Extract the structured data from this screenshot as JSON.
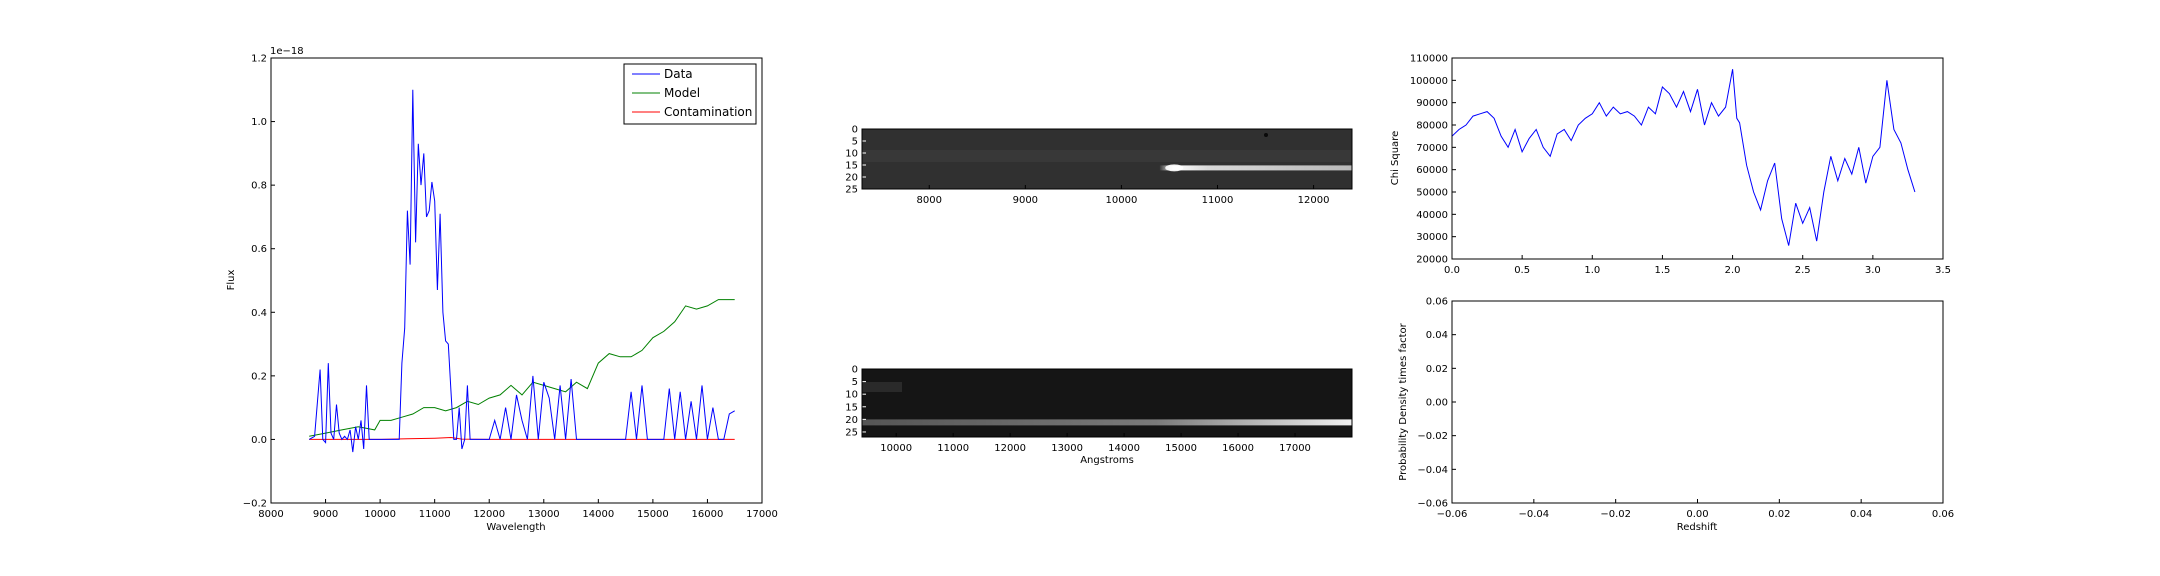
{
  "colors": {
    "data": "#0000ff",
    "model": "#008000",
    "contamination": "#ff0000",
    "background": "#ffffff",
    "frame": "#000000"
  },
  "chart_data": [
    {
      "id": "spectrum",
      "type": "line",
      "xlabel": "Wavelength",
      "ylabel": "Flux",
      "offset_text": "1e−18",
      "xlim": [
        8000,
        17000
      ],
      "ylim": [
        -0.2,
        1.2
      ],
      "xticks": [
        "8000",
        "9000",
        "10000",
        "11000",
        "12000",
        "13000",
        "14000",
        "15000",
        "16000",
        "17000"
      ],
      "yticks": [
        "−0.2",
        "0.0",
        "0.2",
        "0.4",
        "0.6",
        "0.8",
        "1.0",
        "1.2"
      ],
      "legend": {
        "placement": "top-right",
        "entries": [
          "Data",
          "Model",
          "Contamination"
        ]
      },
      "series": [
        {
          "name": "Data",
          "color": "#0000ff",
          "x": [
            8700,
            8800,
            8900,
            8950,
            9000,
            9050,
            9100,
            9150,
            9200,
            9250,
            9300,
            9350,
            9400,
            9450,
            9500,
            9550,
            9600,
            9650,
            9700,
            9750,
            9800,
            9850,
            9900,
            9950,
            10000,
            10050,
            10100,
            10150,
            10200,
            10250,
            10300,
            10350,
            10400,
            10450,
            10500,
            10550,
            10600,
            10650,
            10700,
            10750,
            10800,
            10850,
            10900,
            10950,
            11000,
            11050,
            11100,
            11150,
            11200,
            11250,
            11300,
            11350,
            11400,
            11450,
            11500,
            11550,
            11600,
            11650,
            11700,
            11750,
            11800,
            11850,
            11900,
            11950,
            12000,
            12100,
            12200,
            12300,
            12400,
            12500,
            12600,
            12700,
            12800,
            12900,
            13000,
            13100,
            13200,
            13300,
            13400,
            13500,
            13600,
            13700,
            13800,
            13900,
            14000,
            14100,
            14200,
            14300,
            14400,
            14500,
            14600,
            14700,
            14800,
            14900,
            15000,
            15100,
            15200,
            15300,
            15400,
            15500,
            15600,
            15700,
            15800,
            15900,
            16000,
            16100,
            16200,
            16300,
            16400,
            16500
          ],
          "y": [
            0.0,
            0.01,
            0.22,
            0.0,
            -0.01,
            0.24,
            0.02,
            0.0,
            0.11,
            0.02,
            0.0,
            0.01,
            0.0,
            0.03,
            -0.04,
            0.04,
            0.0,
            0.06,
            -0.03,
            0.17,
            0.0,
            0.0,
            0.0,
            0.0,
            0.0,
            0.0,
            0.0,
            0.0,
            0.0,
            0.0,
            0.0,
            0.0,
            0.24,
            0.35,
            0.72,
            0.55,
            1.1,
            0.62,
            0.93,
            0.8,
            0.9,
            0.7,
            0.72,
            0.81,
            0.75,
            0.47,
            0.71,
            0.4,
            0.31,
            0.3,
            0.15,
            0.0,
            0.0,
            0.1,
            -0.03,
            0.0,
            0.17,
            0.0,
            0.0,
            0.0,
            0.0,
            0.0,
            0.0,
            0.0,
            0.0,
            0.06,
            0.0,
            0.1,
            0.0,
            0.14,
            0.06,
            0.0,
            0.2,
            0.0,
            0.18,
            0.13,
            0.0,
            0.17,
            0.0,
            0.19,
            0.0,
            0.0,
            0.0,
            0.0,
            0.0,
            0.0,
            0.0,
            0.0,
            0.0,
            0.0,
            0.15,
            0.0,
            0.17,
            0.0,
            0.0,
            0.0,
            0.0,
            0.16,
            0.0,
            0.15,
            0.0,
            0.12,
            0.0,
            0.17,
            0.0,
            0.1,
            0.0,
            0.0,
            0.08,
            0.09
          ]
        },
        {
          "name": "Model",
          "color": "#008000",
          "x": [
            8700,
            9000,
            9300,
            9600,
            9900,
            10000,
            10200,
            10400,
            10600,
            10800,
            11000,
            11200,
            11400,
            11600,
            11800,
            12000,
            12200,
            12400,
            12600,
            12800,
            13000,
            13200,
            13400,
            13600,
            13800,
            14000,
            14200,
            14400,
            14600,
            14800,
            15000,
            15200,
            15400,
            15600,
            15800,
            16000,
            16200,
            16400,
            16500
          ],
          "y": [
            0.01,
            0.02,
            0.03,
            0.04,
            0.03,
            0.06,
            0.06,
            0.07,
            0.08,
            0.1,
            0.1,
            0.09,
            0.1,
            0.12,
            0.11,
            0.13,
            0.14,
            0.17,
            0.14,
            0.18,
            0.17,
            0.16,
            0.15,
            0.18,
            0.16,
            0.24,
            0.27,
            0.26,
            0.26,
            0.28,
            0.32,
            0.34,
            0.37,
            0.42,
            0.41,
            0.42,
            0.44,
            0.44,
            0.44
          ]
        },
        {
          "name": "Contamination",
          "color": "#ff0000",
          "x": [
            8700,
            10000,
            10500,
            11000,
            11300,
            11500,
            12000,
            14000,
            16500
          ],
          "y": [
            0.0,
            0.0,
            0.002,
            0.004,
            0.006,
            0.001,
            0.0,
            0.0,
            0.0
          ]
        }
      ]
    },
    {
      "id": "spectrum-2d-upper",
      "type": "heatmap",
      "colormap": "gray",
      "xlim": [
        7300,
        12400
      ],
      "xticks": [
        "8000",
        "9000",
        "10000",
        "11000",
        "12000"
      ],
      "yticks": [
        "0",
        "5",
        "10",
        "15",
        "20",
        "25"
      ],
      "trace": {
        "start": 10400,
        "end": 12400,
        "row": 16,
        "peak": 10550
      }
    },
    {
      "id": "spectrum-2d-lower",
      "type": "heatmap",
      "colormap": "gray",
      "xlabel": "Angstroms",
      "xlim": [
        9400,
        18000
      ],
      "xticks": [
        "10000",
        "11000",
        "12000",
        "13000",
        "14000",
        "15000",
        "16000",
        "17000"
      ],
      "yticks": [
        "0",
        "5",
        "10",
        "15",
        "20",
        "25"
      ],
      "trace": {
        "start": 9400,
        "end": 18000,
        "row": 21,
        "peak": 17800
      }
    },
    {
      "id": "chi-square",
      "type": "line",
      "ylabel": "Chi Square",
      "xlim": [
        0.0,
        3.5
      ],
      "ylim": [
        20000,
        110000
      ],
      "xticks": [
        "0.0",
        "0.5",
        "1.0",
        "1.5",
        "2.0",
        "2.5",
        "3.0",
        "3.5"
      ],
      "yticks": [
        "20000",
        "30000",
        "40000",
        "50000",
        "60000",
        "70000",
        "80000",
        "90000",
        "100000",
        "110000"
      ],
      "series": [
        {
          "name": "",
          "color": "#0000ff",
          "x": [
            0.0,
            0.05,
            0.1,
            0.15,
            0.2,
            0.25,
            0.3,
            0.35,
            0.4,
            0.45,
            0.5,
            0.55,
            0.6,
            0.65,
            0.7,
            0.75,
            0.8,
            0.85,
            0.9,
            0.95,
            1.0,
            1.05,
            1.1,
            1.15,
            1.2,
            1.25,
            1.3,
            1.35,
            1.4,
            1.45,
            1.5,
            1.55,
            1.6,
            1.65,
            1.7,
            1.75,
            1.8,
            1.85,
            1.9,
            1.95,
            2.0,
            2.03,
            2.05,
            2.1,
            2.15,
            2.2,
            2.25,
            2.3,
            2.35,
            2.4,
            2.45,
            2.5,
            2.55,
            2.6,
            2.65,
            2.7,
            2.75,
            2.8,
            2.85,
            2.9,
            2.95,
            3.0,
            3.05,
            3.1,
            3.15,
            3.2,
            3.25,
            3.3
          ],
          "y": [
            75000,
            78000,
            80000,
            84000,
            85000,
            86000,
            83000,
            75000,
            70000,
            78000,
            68000,
            74000,
            78000,
            70000,
            66000,
            76000,
            78000,
            73000,
            80000,
            83000,
            85000,
            90000,
            84000,
            88000,
            85000,
            86000,
            84000,
            80000,
            88000,
            85000,
            97000,
            94000,
            88000,
            95000,
            86000,
            96000,
            80000,
            90000,
            84000,
            88000,
            105000,
            83000,
            81000,
            62000,
            50000,
            42000,
            55000,
            63000,
            38000,
            26000,
            45000,
            36000,
            43000,
            28000,
            50000,
            66000,
            55000,
            65000,
            58000,
            70000,
            54000,
            66000,
            70000,
            100000,
            78000,
            72000,
            60000,
            50000
          ]
        }
      ]
    },
    {
      "id": "probability-density",
      "type": "line",
      "xlabel": "Redshift",
      "ylabel": "Probability Density times factor",
      "xlim": [
        -0.06,
        0.06
      ],
      "ylim": [
        -0.06,
        0.06
      ],
      "xticks": [
        "−0.06",
        "−0.04",
        "−0.02",
        "0.00",
        "0.02",
        "0.04",
        "0.06"
      ],
      "yticks": [
        "−0.06",
        "−0.04",
        "−0.02",
        "0.00",
        "0.02",
        "0.04",
        "0.06"
      ],
      "series": []
    }
  ]
}
